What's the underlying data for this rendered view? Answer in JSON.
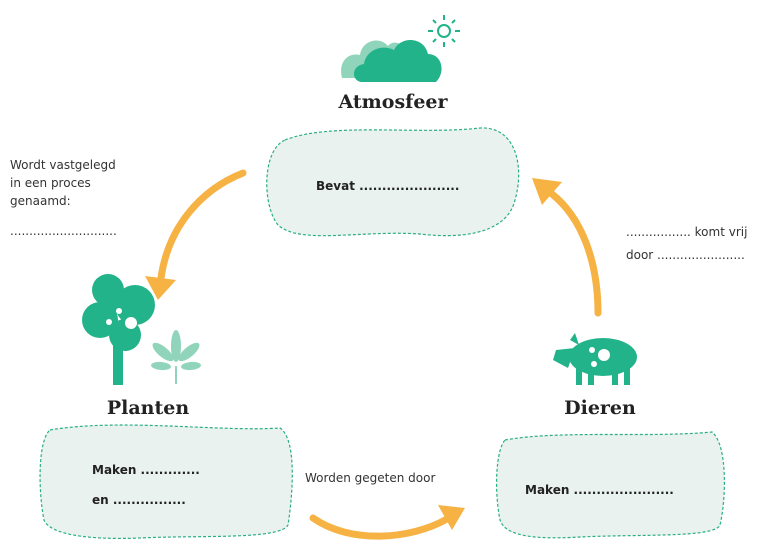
{
  "atmosphere": {
    "title": "Atmosfeer",
    "box": [
      "Bevat ......................"
    ]
  },
  "plants": {
    "title": "Planten",
    "box": [
      "Maken .............",
      "en ................"
    ]
  },
  "animals": {
    "title": "Dieren",
    "box": [
      "Maken ......................"
    ]
  },
  "edges": [
    {
      "label": [
        "Wordt vastgelegd",
        "in een proces",
        "genaamd:",
        "............................"
      ]
    },
    {
      "label": [
        "................. komt vrij",
        "door ......................."
      ]
    },
    {
      "label": [
        "Worden gegeten door"
      ]
    }
  ]
}
